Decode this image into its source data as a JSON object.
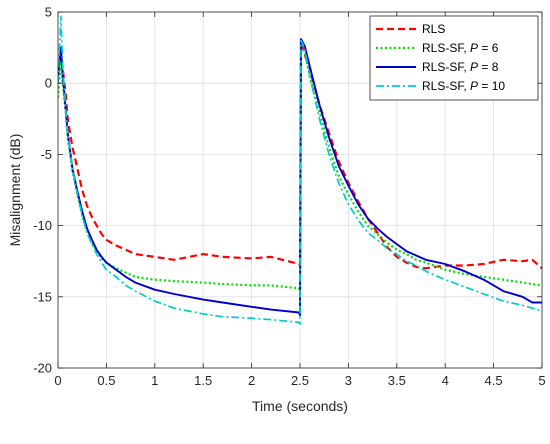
{
  "chart_data": {
    "type": "line",
    "xlabel": "Time (seconds)",
    "ylabel": "Misalignment (dB)",
    "xlim": [
      0,
      5
    ],
    "ylim": [
      -20,
      5
    ],
    "xticks": [
      0,
      0.5,
      1,
      1.5,
      2,
      2.5,
      3,
      3.5,
      4,
      4.5,
      5
    ],
    "xtick_labels": [
      "0",
      "0.5",
      "1",
      "1.5",
      "2",
      "2.5",
      "3",
      "3.5",
      "4",
      "4.5",
      "5"
    ],
    "yticks": [
      5,
      0,
      -5,
      -10,
      -15,
      -20
    ],
    "ytick_labels": [
      "5",
      "0",
      "-5",
      "-10",
      "-15",
      "-20"
    ],
    "grid": true,
    "legend_position": "top-right",
    "series": [
      {
        "name": "RLS",
        "legend_main": "RLS",
        "legend_italic": "",
        "legend_tail": "",
        "color": "#ff0000",
        "dash": "7,4",
        "width": 2.2,
        "x": [
          0,
          0.03,
          0.05,
          0.08,
          0.1,
          0.15,
          0.2,
          0.25,
          0.3,
          0.35,
          0.4,
          0.45,
          0.5,
          0.6,
          0.7,
          0.8,
          1.0,
          1.2,
          1.5,
          1.7,
          2.0,
          2.2,
          2.49,
          2.5,
          2.51,
          2.55,
          2.6,
          2.7,
          2.8,
          2.9,
          3.0,
          3.1,
          3.2,
          3.3,
          3.4,
          3.5,
          3.6,
          3.7,
          3.8,
          4.0,
          4.2,
          4.4,
          4.6,
          4.8,
          4.9,
          5.0
        ],
        "y": [
          0.5,
          2.2,
          1.0,
          -0.8,
          -2.5,
          -4.5,
          -6.0,
          -7.5,
          -8.6,
          -9.4,
          -10.0,
          -10.6,
          -11.0,
          -11.4,
          -11.7,
          -12.0,
          -12.2,
          -12.4,
          -12.0,
          -12.2,
          -12.3,
          -12.2,
          -12.7,
          -12.8,
          3.0,
          2.0,
          1.0,
          -1.5,
          -3.5,
          -5.5,
          -7.0,
          -8.3,
          -9.5,
          -10.5,
          -11.5,
          -12.2,
          -12.6,
          -12.9,
          -13.0,
          -12.8,
          -12.8,
          -12.7,
          -12.4,
          -12.5,
          -12.4,
          -13.0
        ]
      },
      {
        "name": "RLS-SF, P = 6",
        "legend_main": "RLS-SF, ",
        "legend_italic": "P",
        "legend_tail": " = 6",
        "color": "#00dd00",
        "dash": "2,2.5",
        "width": 2.2,
        "x": [
          0,
          0.03,
          0.05,
          0.08,
          0.1,
          0.15,
          0.2,
          0.25,
          0.3,
          0.35,
          0.4,
          0.45,
          0.5,
          0.6,
          0.7,
          0.8,
          1.0,
          1.2,
          1.5,
          1.7,
          2.0,
          2.2,
          2.49,
          2.5,
          2.51,
          2.55,
          2.6,
          2.7,
          2.8,
          2.9,
          3.0,
          3.1,
          3.2,
          3.3,
          3.4,
          3.5,
          3.6,
          3.7,
          3.8,
          4.0,
          4.2,
          4.4,
          4.6,
          4.8,
          4.9,
          5.0
        ],
        "y": [
          -1.0,
          1.5,
          0.0,
          -2.0,
          -3.8,
          -6.2,
          -7.8,
          -9.3,
          -10.4,
          -11.2,
          -11.8,
          -12.3,
          -12.6,
          -13.0,
          -13.3,
          -13.6,
          -13.8,
          -13.9,
          -14.0,
          -14.1,
          -14.2,
          -14.2,
          -14.4,
          -14.6,
          2.6,
          2.2,
          0.5,
          -2.0,
          -4.5,
          -6.5,
          -7.8,
          -9.0,
          -10.0,
          -10.6,
          -11.2,
          -11.7,
          -12.0,
          -12.4,
          -12.6,
          -13.1,
          -13.4,
          -13.6,
          -13.8,
          -14.0,
          -14.1,
          -14.2
        ]
      },
      {
        "name": "RLS-SF, P = 8",
        "legend_main": "RLS-SF, ",
        "legend_italic": "P",
        "legend_tail": " = 8",
        "color": "#0000cc",
        "dash": "",
        "width": 1.9,
        "x": [
          0,
          0.03,
          0.05,
          0.08,
          0.1,
          0.15,
          0.2,
          0.25,
          0.3,
          0.35,
          0.4,
          0.45,
          0.5,
          0.6,
          0.7,
          0.8,
          1.0,
          1.2,
          1.5,
          1.7,
          2.0,
          2.2,
          2.49,
          2.5,
          2.51,
          2.55,
          2.6,
          2.7,
          2.8,
          2.9,
          3.0,
          3.1,
          3.2,
          3.3,
          3.4,
          3.5,
          3.6,
          3.7,
          3.8,
          4.0,
          4.2,
          4.4,
          4.6,
          4.8,
          4.9,
          5.0
        ],
        "y": [
          0.5,
          2.5,
          0.5,
          -1.8,
          -3.5,
          -6.0,
          -7.6,
          -9.0,
          -10.2,
          -11.0,
          -11.7,
          -12.2,
          -12.6,
          -13.1,
          -13.6,
          -14.0,
          -14.5,
          -14.8,
          -15.2,
          -15.4,
          -15.7,
          -15.9,
          -16.1,
          -16.3,
          3.1,
          2.6,
          1.2,
          -1.5,
          -3.8,
          -5.8,
          -7.2,
          -8.5,
          -9.5,
          -10.2,
          -10.8,
          -11.3,
          -11.8,
          -12.1,
          -12.4,
          -12.7,
          -13.2,
          -13.8,
          -14.6,
          -15.0,
          -15.4,
          -15.4
        ]
      },
      {
        "name": "RLS-SF, P = 10",
        "legend_main": "RLS-SF, ",
        "legend_italic": "P",
        "legend_tail": " = 10",
        "color": "#00cccc",
        "dash": "8,3,2,3",
        "width": 1.7,
        "x": [
          0,
          0.03,
          0.05,
          0.08,
          0.1,
          0.15,
          0.2,
          0.25,
          0.3,
          0.35,
          0.4,
          0.45,
          0.5,
          0.6,
          0.7,
          0.8,
          1.0,
          1.2,
          1.5,
          1.7,
          2.0,
          2.2,
          2.49,
          2.5,
          2.51,
          2.55,
          2.6,
          2.7,
          2.8,
          2.9,
          3.0,
          3.1,
          3.2,
          3.3,
          3.4,
          3.5,
          3.6,
          3.7,
          3.8,
          4.0,
          4.2,
          4.4,
          4.6,
          4.8,
          4.9,
          5.0
        ],
        "y": [
          0.0,
          4.7,
          1.0,
          -1.8,
          -3.6,
          -6.0,
          -7.8,
          -9.3,
          -10.5,
          -11.3,
          -12.0,
          -12.6,
          -13.1,
          -13.6,
          -14.2,
          -14.6,
          -15.3,
          -15.8,
          -16.2,
          -16.4,
          -16.5,
          -16.6,
          -16.8,
          -16.9,
          3.0,
          2.4,
          0.5,
          -2.5,
          -5.0,
          -7.0,
          -8.5,
          -9.6,
          -10.5,
          -11.0,
          -11.6,
          -12.0,
          -12.5,
          -12.8,
          -13.2,
          -13.8,
          -14.3,
          -14.8,
          -15.3,
          -15.6,
          -15.8,
          -16.0
        ]
      }
    ]
  }
}
